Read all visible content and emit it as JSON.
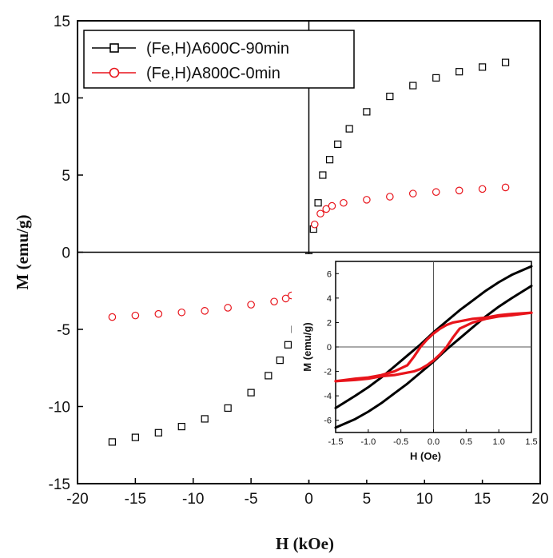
{
  "chart_data": [
    {
      "type": "scatter",
      "xlabel": "H (kOe)",
      "ylabel": "M (emu/g)",
      "xlim": [
        -20,
        20
      ],
      "ylim": [
        -15,
        15
      ],
      "xticks": [
        -20,
        -15,
        -10,
        -5,
        0,
        5,
        10,
        15,
        20
      ],
      "yticks": [
        -15,
        -10,
        -5,
        0,
        5,
        10,
        15
      ],
      "legend_position": "top-left",
      "series": [
        {
          "name": "(Fe,H)A600C-90min",
          "marker": "square",
          "color": "#000000",
          "Ms": 12.3,
          "x": [
            -17,
            -15,
            -13,
            -11,
            -9,
            -7,
            -5,
            -3.5,
            -2.5,
            -1.8,
            -1.2,
            -0.8,
            -0.4,
            0,
            0.4,
            0.8,
            1.2,
            1.8,
            2.5,
            3.5,
            5,
            7,
            9,
            11,
            13,
            15,
            17
          ],
          "y": [
            -12.3,
            -12.0,
            -11.7,
            -11.3,
            -10.8,
            -10.1,
            -9.1,
            -8.0,
            -7.0,
            -6.0,
            -5.0,
            -4.0,
            -3.5,
            -0.3,
            1.5,
            3.2,
            5.0,
            6.0,
            7.0,
            8.0,
            9.1,
            10.1,
            10.8,
            11.3,
            11.7,
            12.0,
            12.3
          ]
        },
        {
          "name": "(Fe,H)A800C-0min",
          "marker": "circle",
          "color": "#e8141b",
          "Ms": 4.2,
          "x": [
            -17,
            -15,
            -13,
            -11,
            -9,
            -7,
            -5,
            -3,
            -2,
            -1.5,
            -1,
            -0.5,
            0,
            0.5,
            1,
            1.5,
            2,
            3,
            5,
            7,
            9,
            11,
            13,
            15,
            17
          ],
          "y": [
            -4.2,
            -4.1,
            -4.0,
            -3.9,
            -3.8,
            -3.6,
            -3.4,
            -3.2,
            -3.0,
            -2.8,
            -2.5,
            -1.8,
            -0.4,
            1.8,
            2.5,
            2.8,
            3.0,
            3.2,
            3.4,
            3.6,
            3.8,
            3.9,
            4.0,
            4.1,
            4.2
          ]
        }
      ]
    },
    {
      "type": "line",
      "role": "inset",
      "xlabel": "H (Oe)",
      "ylabel": "M (emu/g)",
      "xlim": [
        -1.5,
        1.5
      ],
      "ylim": [
        -7,
        7
      ],
      "xticks": [
        -1.5,
        -1.0,
        -0.5,
        0.0,
        0.5,
        1.0,
        1.5
      ],
      "xtick_labels": [
        "-1.5",
        "-1.0",
        "-0.5",
        "0.0",
        "0.5",
        "1.0",
        "1.5"
      ],
      "yticks": [
        -6,
        -4,
        -2,
        0,
        2,
        4,
        6
      ],
      "series": [
        {
          "branch": "upper",
          "color": "#000000",
          "x": [
            -1.5,
            -1.2,
            -1.0,
            -0.8,
            -0.6,
            -0.4,
            -0.2,
            0.0,
            0.2,
            0.4,
            0.6,
            0.8,
            1.0,
            1.2,
            1.5
          ],
          "y": [
            -5.0,
            -4.0,
            -3.3,
            -2.5,
            -1.6,
            -0.7,
            0.2,
            1.2,
            2.1,
            3.0,
            3.8,
            4.6,
            5.3,
            5.9,
            6.6
          ]
        },
        {
          "branch": "lower",
          "color": "#000000",
          "x": [
            -1.5,
            -1.2,
            -1.0,
            -0.8,
            -0.6,
            -0.4,
            -0.2,
            0.0,
            0.2,
            0.4,
            0.6,
            0.8,
            1.0,
            1.2,
            1.5
          ],
          "y": [
            -6.6,
            -5.9,
            -5.3,
            -4.6,
            -3.8,
            -3.0,
            -2.1,
            -1.2,
            -0.2,
            0.7,
            1.6,
            2.5,
            3.3,
            4.0,
            5.0
          ]
        },
        {
          "branch": "upper",
          "color": "#e8141b",
          "x": [
            -1.5,
            -1.2,
            -1.0,
            -0.8,
            -0.6,
            -0.4,
            -0.3,
            -0.2,
            -0.1,
            0.0,
            0.1,
            0.2,
            0.3,
            0.4,
            0.6,
            0.8,
            1.0,
            1.2,
            1.5
          ],
          "y": [
            -2.8,
            -2.6,
            -2.5,
            -2.3,
            -2.0,
            -1.5,
            -0.8,
            0.0,
            0.6,
            1.1,
            1.5,
            1.8,
            2.0,
            2.1,
            2.3,
            2.4,
            2.6,
            2.7,
            2.8
          ]
        },
        {
          "branch": "lower",
          "color": "#e8141b",
          "x": [
            -1.5,
            -1.2,
            -1.0,
            -0.8,
            -0.6,
            -0.4,
            -0.3,
            -0.2,
            -0.1,
            0.0,
            0.1,
            0.2,
            0.3,
            0.4,
            0.6,
            0.8,
            1.0,
            1.2,
            1.5
          ],
          "y": [
            -2.8,
            -2.7,
            -2.6,
            -2.4,
            -2.3,
            -2.1,
            -2.0,
            -1.8,
            -1.5,
            -1.1,
            -0.6,
            0.0,
            0.8,
            1.5,
            2.0,
            2.3,
            2.5,
            2.6,
            2.8
          ]
        }
      ]
    }
  ]
}
